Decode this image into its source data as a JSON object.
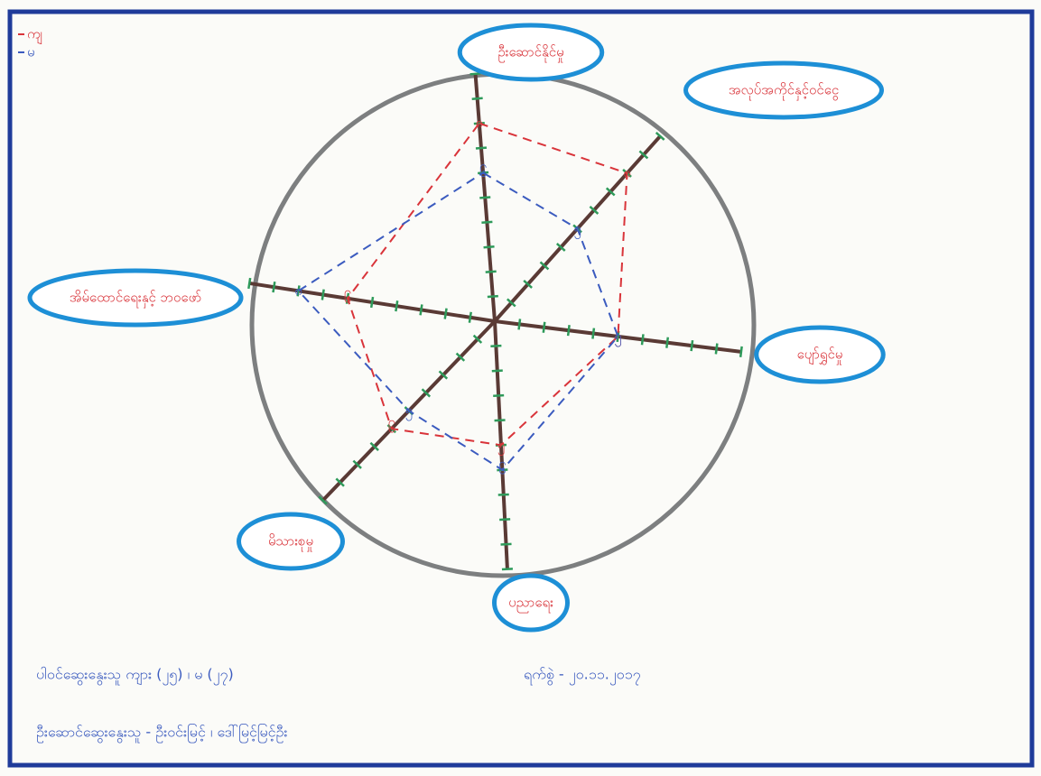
{
  "chart_data": {
    "type": "radar",
    "categories": [
      "ဦးဆောင်နိုင်မှု",
      "အလုပ်အကိုင်နှင့်ဝင်ငွေ",
      "ပျော်ရွှင်မှု",
      "ပညာရေး",
      "မိသားစုမှု",
      "အိမ်ထောင်ရေးနှင့် ဘဝဖော်"
    ],
    "series": [
      {
        "name": "ကျ",
        "color": "#d9343a",
        "values": [
          8,
          8,
          5,
          5,
          6,
          6
        ],
        "value_labels": [
          "၈",
          "၈",
          "၅",
          "၅",
          "၆",
          "၆"
        ]
      },
      {
        "name": "မ",
        "color": "#3b5bbf",
        "values": [
          6,
          5,
          5,
          6,
          5,
          8
        ],
        "value_labels": [
          "၆",
          "၅",
          "၅",
          "၆",
          "၅",
          "၈"
        ]
      }
    ],
    "rlim": [
      0,
      10
    ],
    "rticks": [
      1,
      2,
      3,
      4,
      5,
      6,
      7,
      8,
      9,
      10
    ]
  },
  "notes": [
    "ပါဝင်ဆွေးနွေးသူ ကျား (၂၅) ၊ မ (၂၇)",
    "ရက်စွဲ - ၂၀.၁၁.၂၀၁၇",
    "ဦးဆောင်ဆွေးနွေးသူ - ဦးဝင်းမြင့် ၊ ဒေါ်မြင့်မြင့်ဦး"
  ]
}
